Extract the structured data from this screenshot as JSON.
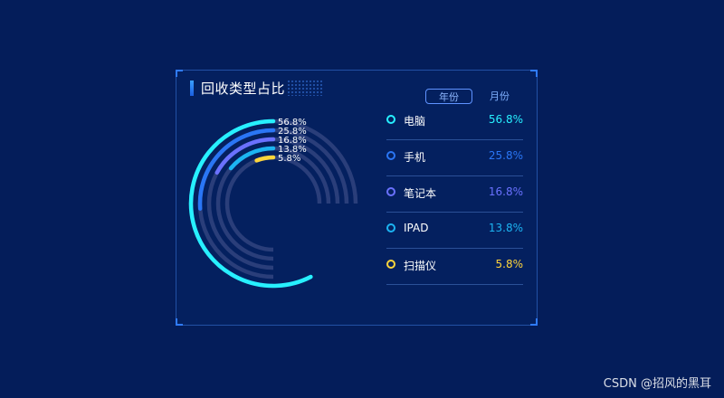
{
  "panel": {
    "title": "回收类型占比",
    "tabs": [
      {
        "label": "年份",
        "active": true
      },
      {
        "label": "月份",
        "active": false
      }
    ]
  },
  "chart_data": {
    "type": "radial-bar",
    "title": "回收类型占比",
    "unit": "%",
    "track_color": "#2a3e7a",
    "series": [
      {
        "name": "电脑",
        "value": 56.8,
        "label": "56.8%",
        "color": "#27f0ff"
      },
      {
        "name": "手机",
        "value": 25.8,
        "label": "25.8%",
        "color": "#2a76f5"
      },
      {
        "name": "笔记本",
        "value": 16.8,
        "label": "16.8%",
        "color": "#6a71ff"
      },
      {
        "name": "IPAD",
        "value": 13.8,
        "label": "13.8%",
        "color": "#1cb4f2"
      },
      {
        "name": "扫描仪",
        "value": 5.8,
        "label": "5.8%",
        "color": "#ffd53b"
      }
    ]
  },
  "watermark": "CSDN @招风的黑耳"
}
